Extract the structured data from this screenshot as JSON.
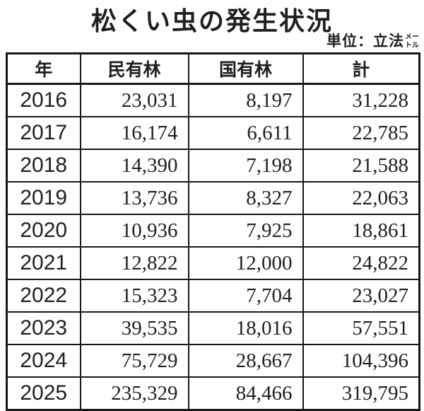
{
  "title": "松くい虫の発生状況",
  "unit": {
    "prefix": "単位：立法",
    "small_top": "メー",
    "small_bottom": "トル",
    "full": "単位：立法メートル"
  },
  "table": {
    "headers": {
      "year": "年",
      "private": "民有林",
      "national": "国有林",
      "total": "計"
    },
    "rows": [
      {
        "year": "2016",
        "private": "23,031",
        "national": "8,197",
        "total": "31,228"
      },
      {
        "year": "2017",
        "private": "16,174",
        "national": "6,611",
        "total": "22,785"
      },
      {
        "year": "2018",
        "private": "14,390",
        "national": "7,198",
        "total": "21,588"
      },
      {
        "year": "2019",
        "private": "13,736",
        "national": "8,327",
        "total": "22,063"
      },
      {
        "year": "2020",
        "private": "10,936",
        "national": "7,925",
        "total": "18,861"
      },
      {
        "year": "2021",
        "private": "12,822",
        "national": "12,000",
        "total": "24,822"
      },
      {
        "year": "2022",
        "private": "15,323",
        "national": "7,704",
        "total": "23,027"
      },
      {
        "year": "2023",
        "private": "39,535",
        "national": "18,016",
        "total": "57,551"
      },
      {
        "year": "2024",
        "private": "75,729",
        "national": "28,667",
        "total": "104,396"
      },
      {
        "year": "2025",
        "private": "235,329",
        "national": "84,466",
        "total": "319,795"
      }
    ]
  },
  "chart_data": {
    "type": "table",
    "title": "松くい虫の発生状況",
    "unit": "立法メートル (cubic meters)",
    "categories": [
      2016,
      2017,
      2018,
      2019,
      2020,
      2021,
      2022,
      2023,
      2024,
      2025
    ],
    "series": [
      {
        "name": "民有林",
        "values": [
          23031,
          16174,
          14390,
          13736,
          10936,
          12822,
          15323,
          39535,
          75729,
          235329
        ]
      },
      {
        "name": "国有林",
        "values": [
          8197,
          6611,
          7198,
          8327,
          7925,
          12000,
          7704,
          18016,
          28667,
          84466
        ]
      },
      {
        "name": "計",
        "values": [
          31228,
          22785,
          21588,
          22063,
          18861,
          24822,
          23027,
          57551,
          104396,
          319795
        ]
      }
    ]
  },
  "colors": {
    "text": "#221e1f",
    "border": "#1a1717",
    "background": "#ffffff"
  }
}
